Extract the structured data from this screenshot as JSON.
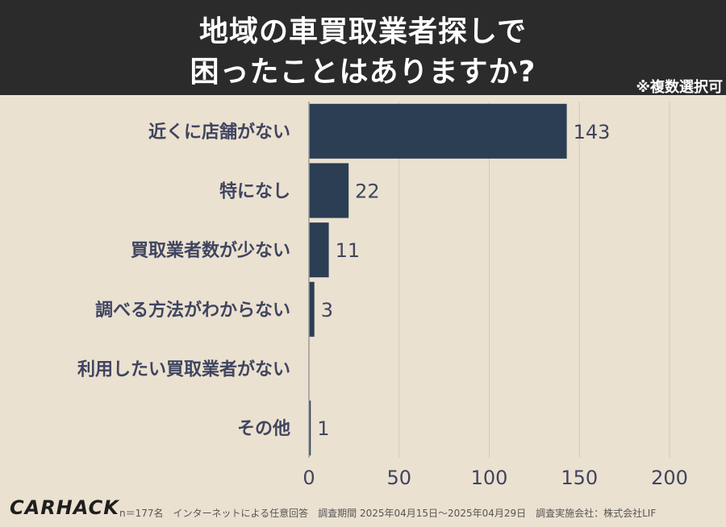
{
  "header": {
    "title_line1": "地域の車買取業者探しで",
    "title_line2": "困ったことはありますか?",
    "note": "※複数選択可"
  },
  "chart_data": {
    "type": "bar",
    "orientation": "horizontal",
    "categories": [
      "近くに店舗がない",
      "特になし",
      "買取業者数が少ない",
      "調べる方法がわからない",
      "利用したい買取業者がない",
      "その他"
    ],
    "values": [
      143,
      22,
      11,
      3,
      0,
      1
    ],
    "data_labels": [
      "143",
      "22",
      "11",
      "3",
      "",
      "1"
    ],
    "xlim": [
      0,
      200
    ],
    "xticks": [
      0,
      50,
      100,
      150,
      200
    ],
    "grid": true,
    "bar_color": "#2b3e54"
  },
  "footer": {
    "logo": "CARHACK",
    "text": "n＝177名　インターネットによる任意回答　調査期間 2025年04月15日〜2025年04月29日　調査実施会社：株式会社LIF"
  }
}
